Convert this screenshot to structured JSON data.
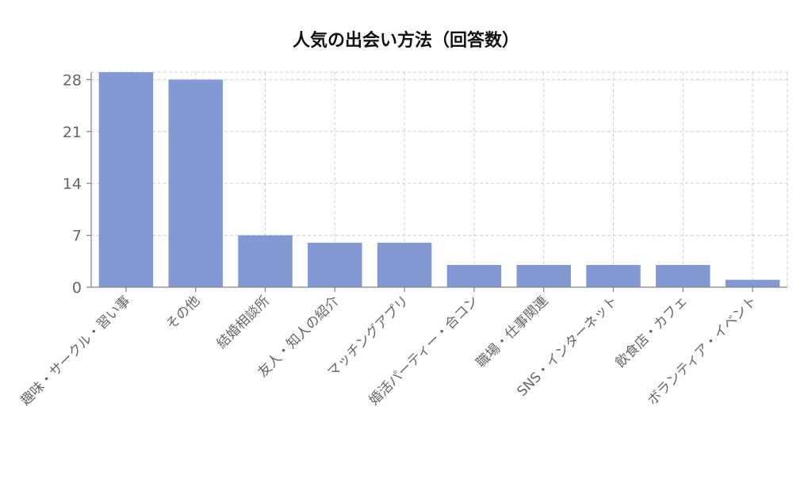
{
  "chart_data": {
    "type": "bar",
    "title": "人気の出会い方法（回答数）",
    "xlabel": "",
    "ylabel": "",
    "categories": [
      "趣味・サークル・習い事",
      "その他",
      "結婚相談所",
      "友人・知人の紹介",
      "マッチングアプリ",
      "婚活パーティー・合コン",
      "職場・仕事関連",
      "SNS・インターネット",
      "飲食店・カフェ",
      "ボランティア・イベント"
    ],
    "values": [
      29,
      28,
      7,
      6,
      6,
      3,
      3,
      3,
      3,
      1
    ],
    "ylim": [
      0,
      29
    ],
    "yticks": [
      0,
      7,
      14,
      21,
      28
    ],
    "grid": true,
    "legend": "none",
    "bar_color": "#8299d4"
  }
}
